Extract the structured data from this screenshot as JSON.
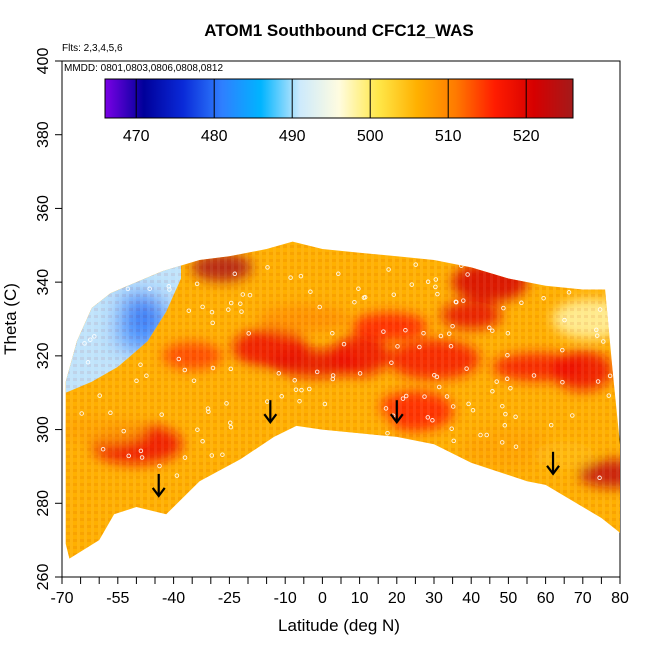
{
  "chart_data": {
    "type": "heatmap",
    "title": "ATOM1 Southbound CFC12_WAS",
    "flights_note": "Flts: 2,3,4,5,6",
    "dates_note": "MMDD: 0801,0803,0806,0808,0812",
    "xlabel": "Latitude (deg N)",
    "ylabel": "Theta (C)",
    "xlim": [
      -70,
      80
    ],
    "ylim": [
      260,
      400
    ],
    "x_ticks": [
      "-70",
      "-55",
      "-40",
      "-25",
      "-10",
      "0",
      "10",
      "20",
      "30",
      "40",
      "50",
      "60",
      "70",
      "80"
    ],
    "y_ticks": [
      "260",
      "280",
      "300",
      "320",
      "340",
      "360",
      "380",
      "400"
    ],
    "colorbar": {
      "range": [
        466,
        526
      ],
      "ticks": [
        "470",
        "480",
        "490",
        "500",
        "510",
        "520"
      ],
      "colors": [
        "#7a00e6",
        "#00009a",
        "#0a2ad8",
        "#2f7fff",
        "#00b4ff",
        "#cdeafc",
        "#fffce0",
        "#ffe84a",
        "#ffb000",
        "#ff7a00",
        "#ff1c00",
        "#d60000",
        "#a41a1a"
      ]
    },
    "boundary_top": [
      [
        -69,
        313
      ],
      [
        -66,
        324
      ],
      [
        -62,
        333
      ],
      [
        -57,
        337
      ],
      [
        -50,
        340
      ],
      [
        -43,
        343
      ],
      [
        -33,
        346
      ],
      [
        -25,
        347
      ],
      [
        -15,
        349
      ],
      [
        -8,
        351
      ],
      [
        0,
        349
      ],
      [
        10,
        348
      ],
      [
        20,
        347
      ],
      [
        30,
        346
      ],
      [
        40,
        344
      ],
      [
        50,
        341
      ],
      [
        60,
        339
      ],
      [
        70,
        338
      ],
      [
        76,
        338
      ],
      [
        78,
        316
      ],
      [
        80,
        296
      ]
    ],
    "boundary_bottom": [
      [
        80,
        272
      ],
      [
        75,
        276
      ],
      [
        60,
        285
      ],
      [
        55,
        286
      ],
      [
        40,
        291
      ],
      [
        30,
        296
      ],
      [
        20,
        298
      ],
      [
        10,
        299
      ],
      [
        0,
        300
      ],
      [
        -7,
        301
      ],
      [
        -13,
        298
      ],
      [
        -22,
        292
      ],
      [
        -33,
        286
      ],
      [
        -42,
        277
      ],
      [
        -50,
        279
      ],
      [
        -56,
        277
      ],
      [
        -60,
        270
      ],
      [
        -68,
        265
      ],
      [
        -69,
        269
      ]
    ],
    "low_region": {
      "top": [
        [
          -69,
          313
        ],
        [
          -66,
          324
        ],
        [
          -62,
          333
        ],
        [
          -57,
          337
        ],
        [
          -50,
          340
        ],
        [
          -43,
          343
        ],
        [
          -38,
          345
        ]
      ],
      "bottom": [
        [
          -38,
          341
        ],
        [
          -42,
          332
        ],
        [
          -47,
          324
        ],
        [
          -55,
          317
        ],
        [
          -62,
          313
        ],
        [
          -69,
          310
        ]
      ],
      "core": [
        [
          -53,
          337
        ],
        [
          -45,
          336
        ],
        [
          -40,
          328
        ],
        [
          -47,
          320
        ],
        [
          -55,
          324
        ]
      ]
    },
    "hot_spots": [
      [
        -27,
        344,
        525
      ],
      [
        -14,
        322,
        518
      ],
      [
        -2,
        318,
        519
      ],
      [
        10,
        320,
        518
      ],
      [
        18,
        328,
        516
      ],
      [
        30,
        319,
        517
      ],
      [
        40,
        331,
        519
      ],
      [
        45,
        340,
        521
      ],
      [
        58,
        317,
        517
      ],
      [
        70,
        316,
        518
      ],
      [
        79,
        288,
        523
      ],
      [
        -50,
        296,
        518
      ],
      [
        -35,
        320,
        514
      ],
      [
        25,
        305,
        516
      ]
    ],
    "cool_spots": [
      [
        -60,
        300,
        507
      ],
      [
        -20,
        310,
        506
      ],
      [
        8,
        302,
        506
      ],
      [
        50,
        295,
        507
      ],
      [
        65,
        293,
        505
      ],
      [
        72,
        330,
        498
      ],
      [
        -5,
        330,
        509
      ]
    ],
    "arrows": [
      [
        -44,
        282
      ],
      [
        -14,
        302
      ],
      [
        20,
        302
      ],
      [
        62,
        288
      ]
    ]
  }
}
